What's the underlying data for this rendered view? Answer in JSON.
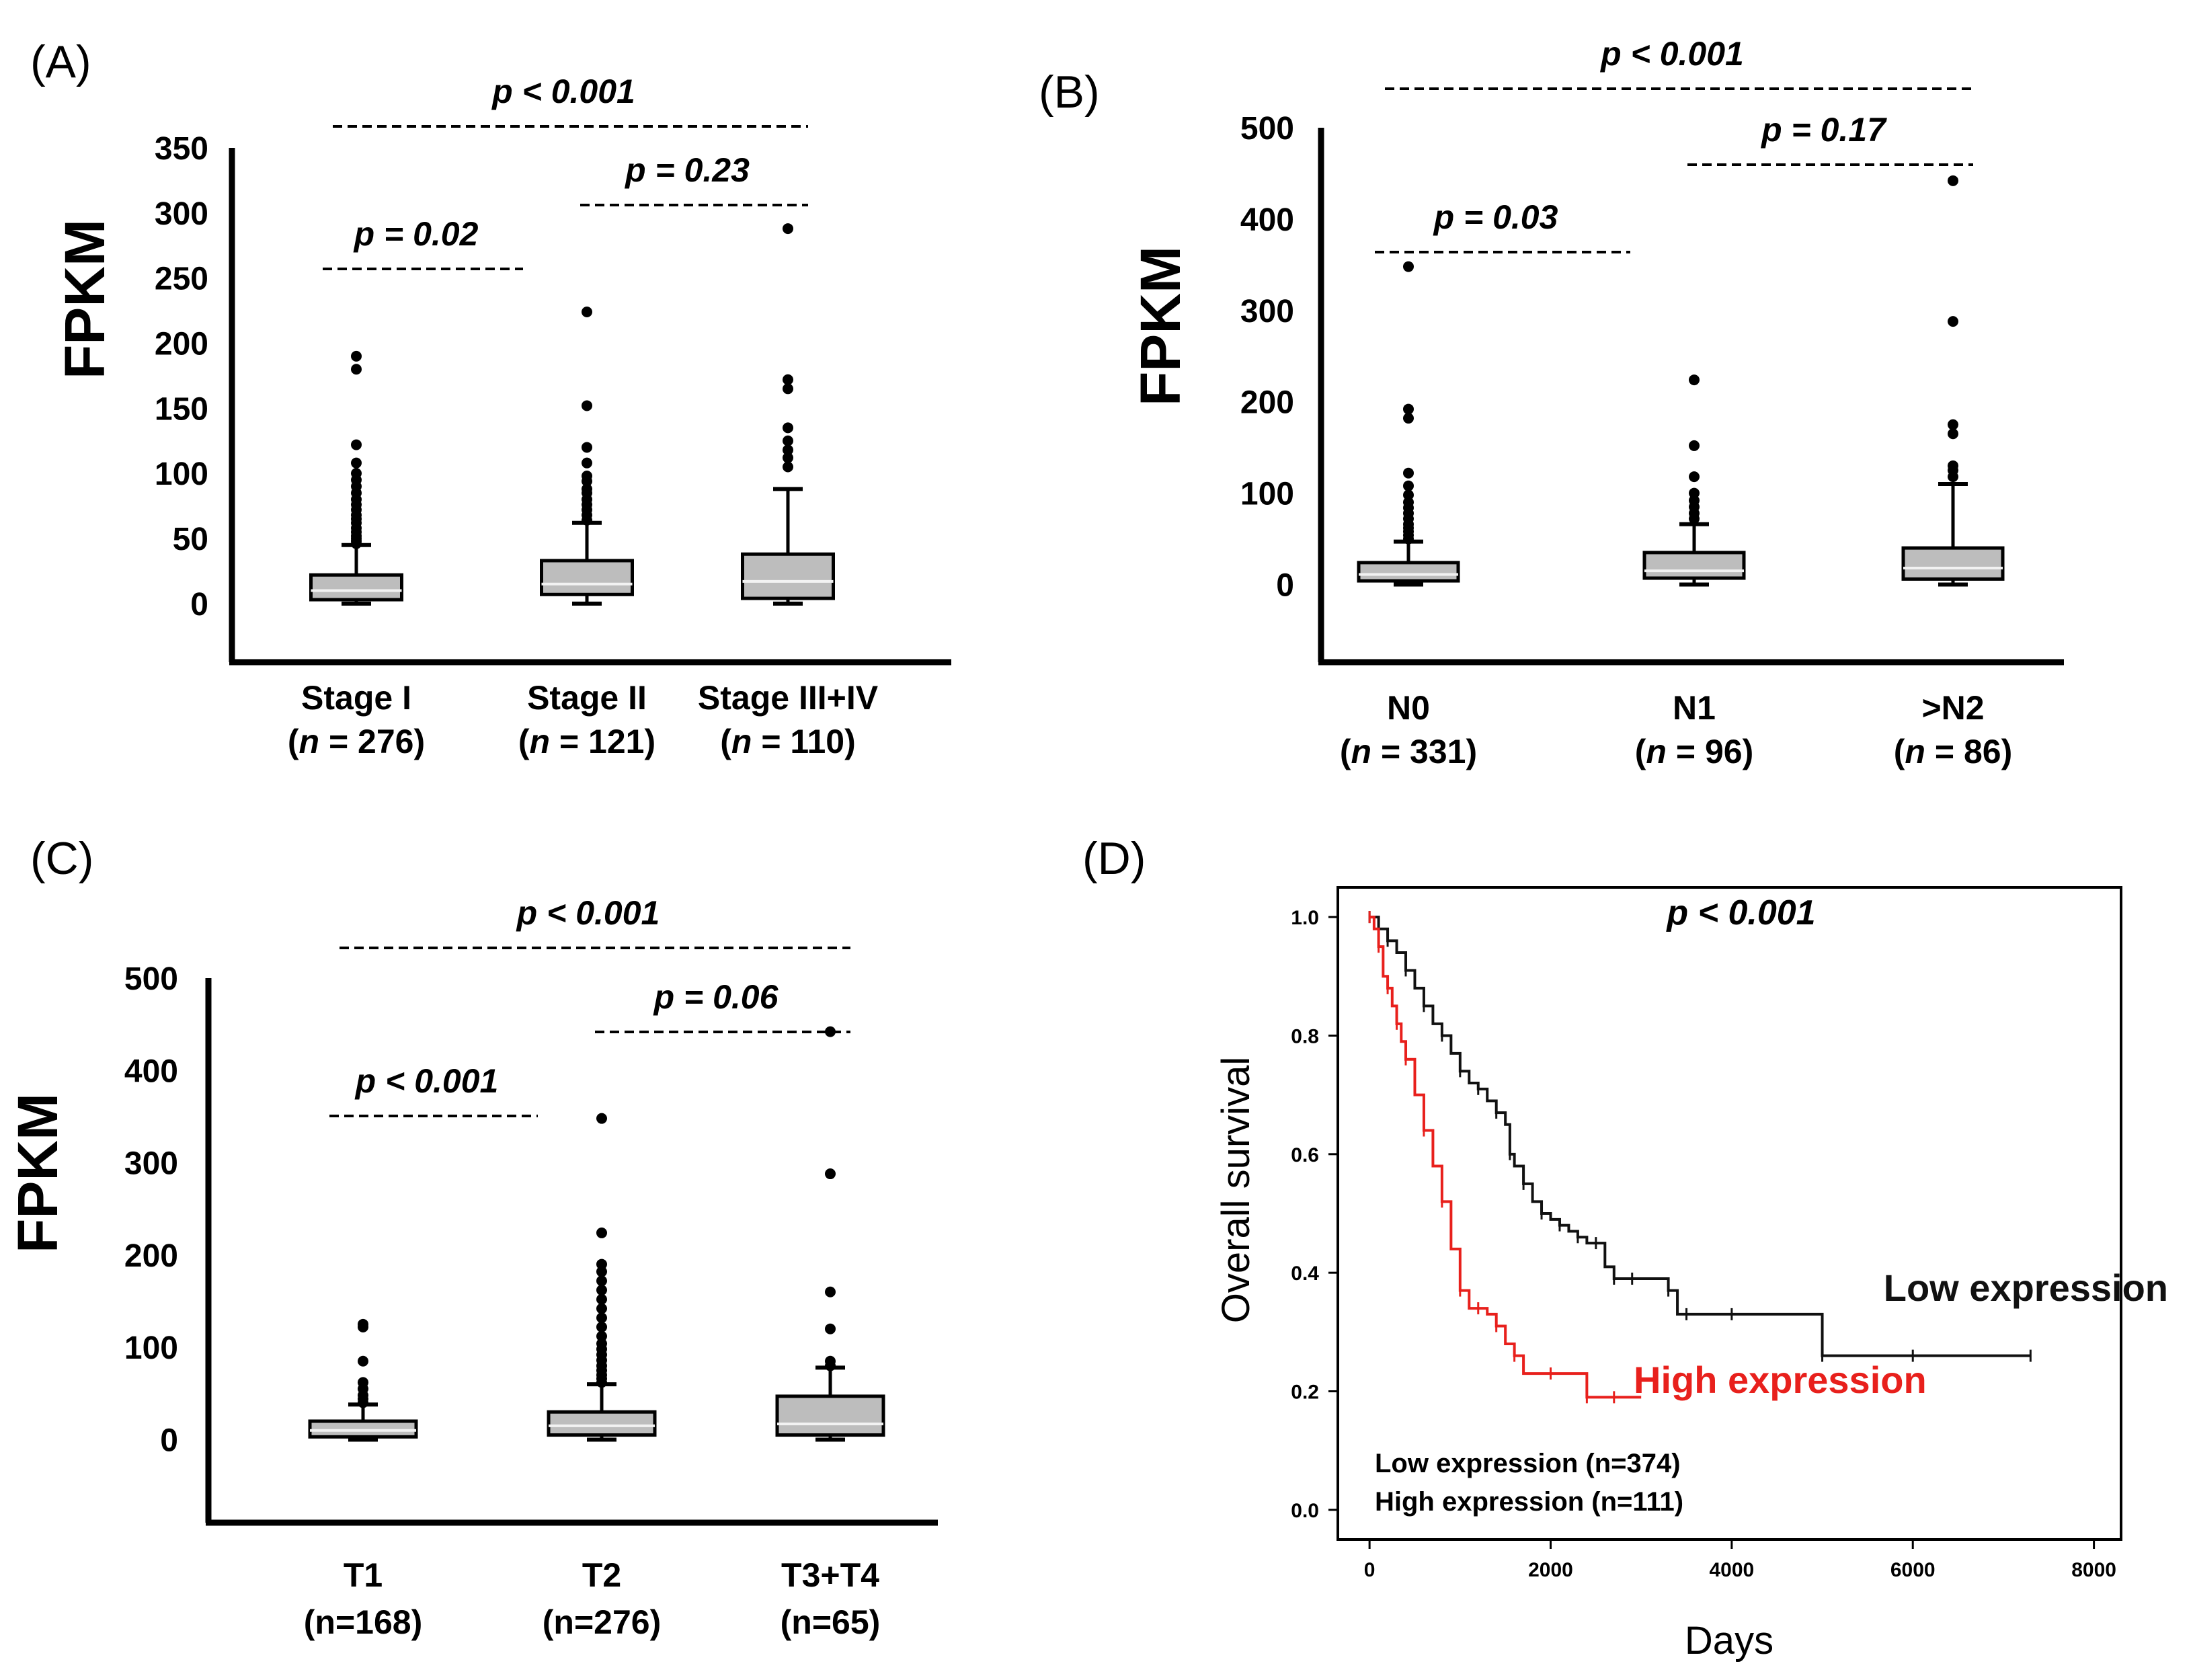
{
  "figure": {
    "panels": [
      {
        "id": "A",
        "label": "(A)"
      },
      {
        "id": "B",
        "label": "(B)"
      },
      {
        "id": "C",
        "label": "(C)"
      },
      {
        "id": "D",
        "label": "(D)"
      }
    ]
  },
  "chart_data": [
    {
      "panel": "A",
      "type": "box",
      "ylabel": "FPKM",
      "ylim": [
        -45,
        350
      ],
      "yticks": [
        0,
        50,
        100,
        150,
        200,
        250,
        300,
        350
      ],
      "groups": [
        {
          "label": "Stage I",
          "n_label": "n",
          "n_text": " = 276)",
          "q1": 3,
          "median": 10,
          "q3": 22,
          "whisker_low": 0,
          "whisker_high": 45,
          "outliers": [
            190,
            180,
            122,
            108,
            100,
            95,
            90,
            85,
            80,
            76,
            72,
            68,
            65,
            62,
            58,
            55,
            52,
            50,
            48,
            46
          ]
        },
        {
          "label": "Stage II",
          "n_label": "n",
          "n_text": " = 121)",
          "q1": 7,
          "median": 15,
          "q3": 33,
          "whisker_low": 0,
          "whisker_high": 62,
          "outliers": [
            224,
            152,
            120,
            108,
            98,
            94,
            88,
            85,
            80,
            76,
            72,
            68,
            64
          ]
        },
        {
          "label": "Stage III+IV",
          "n_label": "n",
          "n_text": " = 110)",
          "q1": 4,
          "median": 17,
          "q3": 38,
          "whisker_low": 0,
          "whisker_high": 88,
          "outliers": [
            288,
            172,
            165,
            135,
            125,
            118,
            112,
            105
          ]
        }
      ],
      "comparisons": [
        {
          "from": 0,
          "to": 1,
          "text": "p = 0.02",
          "level": 1
        },
        {
          "from": 1,
          "to": 2,
          "text": "p = 0.23",
          "level": 2
        },
        {
          "from": 0,
          "to": 2,
          "text": "p < 0.001",
          "level": 3
        }
      ]
    },
    {
      "panel": "B",
      "type": "box",
      "ylabel": "FPKM",
      "ylim": [
        -85,
        500
      ],
      "yticks": [
        0,
        100,
        200,
        300,
        400,
        500
      ],
      "groups": [
        {
          "label": "N0",
          "n_label": "n",
          "n_text": " = 331)",
          "q1": 4,
          "median": 11,
          "q3": 24,
          "whisker_low": 0,
          "whisker_high": 47,
          "outliers": [
            348,
            192,
            182,
            122,
            108,
            98,
            90,
            84,
            78,
            72,
            66,
            62,
            58,
            54,
            50
          ]
        },
        {
          "label": "N1",
          "n_label": "n",
          "n_text": " = 96)",
          "q1": 7,
          "median": 15,
          "q3": 35,
          "whisker_low": 0,
          "whisker_high": 66,
          "outliers": [
            224,
            152,
            118,
            100,
            92,
            85,
            78,
            72
          ]
        },
        {
          "label": ">N2",
          "n_label": "n",
          "n_text": " = 86)",
          "q1": 6,
          "median": 18,
          "q3": 40,
          "whisker_low": 0,
          "whisker_high": 110,
          "outliers": [
            442,
            288,
            175,
            165,
            130,
            125,
            118
          ]
        }
      ],
      "comparisons": [
        {
          "from": 0,
          "to": 1,
          "text": "p = 0.03",
          "level": 1
        },
        {
          "from": 1,
          "to": 2,
          "text": "p = 0.17",
          "level": 2
        },
        {
          "from": 0,
          "to": 2,
          "text": "p < 0.001",
          "level": 3
        }
      ]
    },
    {
      "panel": "C",
      "type": "box",
      "ylabel": "FPKM",
      "ylim": [
        -90,
        500
      ],
      "yticks": [
        0,
        100,
        200,
        300,
        400,
        500
      ],
      "groups": [
        {
          "label": "T1",
          "n_label": "",
          "n_text": "(n=168)",
          "q1": 3,
          "median": 10,
          "q3": 20,
          "whisker_low": 0,
          "whisker_high": 38,
          "outliers": [
            125,
            122,
            85,
            62,
            55,
            48,
            44,
            40
          ]
        },
        {
          "label": "T2",
          "n_label": "",
          "n_text": "(n=276)",
          "q1": 5,
          "median": 15,
          "q3": 30,
          "whisker_low": 0,
          "whisker_high": 60,
          "outliers": [
            348,
            224,
            190,
            182,
            172,
            162,
            152,
            142,
            132,
            122,
            112,
            104,
            98,
            92,
            86,
            80,
            75,
            70,
            66,
            62
          ]
        },
        {
          "label": "T3+T4",
          "n_label": "",
          "n_text": "(n=65)",
          "q1": 5,
          "median": 17,
          "q3": 47,
          "whisker_low": 0,
          "whisker_high": 78,
          "outliers": [
            442,
            288,
            160,
            120,
            85,
            80
          ]
        }
      ],
      "comparisons": [
        {
          "from": 0,
          "to": 1,
          "text": "p < 0.001",
          "level": 1
        },
        {
          "from": 1,
          "to": 2,
          "text": "p = 0.06",
          "level": 2
        },
        {
          "from": 0,
          "to": 2,
          "text": "p < 0.001",
          "level": 3
        }
      ]
    },
    {
      "panel": "D",
      "type": "line",
      "title": "p < 0.001",
      "xlabel": "Days",
      "ylabel": "Overall survival",
      "xlim": [
        -350,
        8300
      ],
      "ylim": [
        -0.05,
        1.05
      ],
      "xticks": [
        0,
        2000,
        4000,
        6000,
        8000
      ],
      "yticks": [
        "0.0",
        "0.2",
        "0.4",
        "0.6",
        "0.8",
        "1.0"
      ],
      "series": [
        {
          "name": "Low expression",
          "label": "Low expression",
          "color": "#111111",
          "x": [
            0,
            100,
            200,
            300,
            400,
            500,
            600,
            700,
            800,
            900,
            1000,
            1100,
            1200,
            1300,
            1400,
            1500,
            1550,
            1600,
            1700,
            1800,
            1900,
            2000,
            2100,
            2200,
            2300,
            2400,
            2500,
            2600,
            2700,
            2800,
            2900,
            3000,
            3300,
            3400,
            3500,
            3600,
            4000,
            4500,
            5000,
            5100,
            6000,
            7000,
            7300
          ],
          "y": [
            1.0,
            0.98,
            0.96,
            0.94,
            0.91,
            0.88,
            0.85,
            0.82,
            0.8,
            0.77,
            0.74,
            0.72,
            0.71,
            0.69,
            0.67,
            0.65,
            0.6,
            0.58,
            0.55,
            0.52,
            0.5,
            0.49,
            0.48,
            0.47,
            0.46,
            0.45,
            0.45,
            0.41,
            0.39,
            0.39,
            0.39,
            0.39,
            0.37,
            0.33,
            0.33,
            0.33,
            0.33,
            0.33,
            0.26,
            0.26,
            0.26,
            0.26,
            0.26
          ]
        },
        {
          "name": "High expression",
          "label": "High expression",
          "color": "#e8201c",
          "x": [
            0,
            50,
            100,
            150,
            200,
            250,
            300,
            350,
            400,
            500,
            600,
            700,
            800,
            900,
            1000,
            1100,
            1200,
            1300,
            1400,
            1500,
            1600,
            1700,
            2000,
            2300,
            2400,
            2500,
            2700,
            3000
          ],
          "y": [
            1.0,
            0.98,
            0.95,
            0.9,
            0.88,
            0.85,
            0.82,
            0.79,
            0.76,
            0.7,
            0.64,
            0.58,
            0.52,
            0.44,
            0.37,
            0.34,
            0.34,
            0.33,
            0.31,
            0.28,
            0.26,
            0.23,
            0.23,
            0.23,
            0.19,
            0.19,
            0.19,
            0.19
          ]
        }
      ],
      "legend": [
        "Low expression (n=374)",
        "High expression (n=111)"
      ]
    }
  ]
}
